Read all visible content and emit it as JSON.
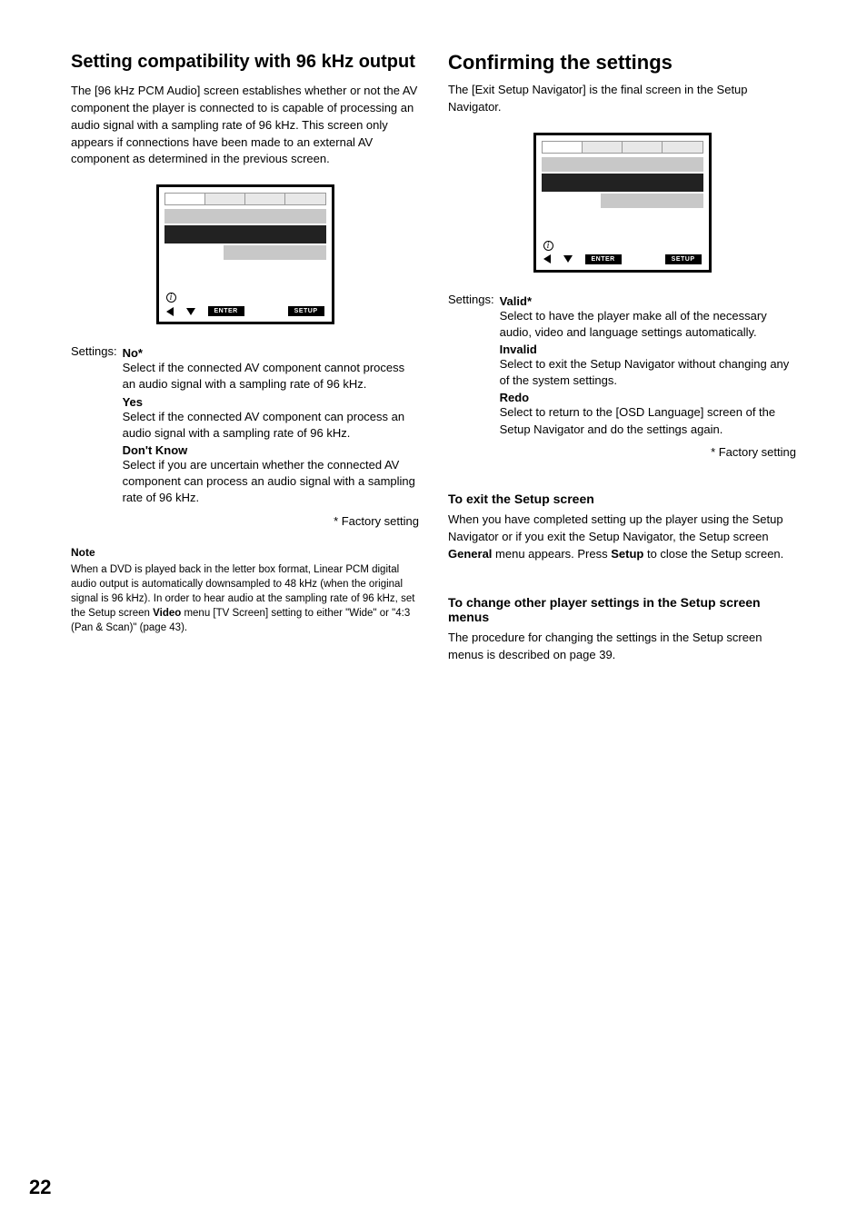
{
  "page_number": "22",
  "left": {
    "heading": "Setting compatibility with 96 kHz output",
    "intro": "The [96 kHz PCM Audio] screen establishes whether or not the AV component the player is connected to is capable of processing an audio signal with a sampling rate of 96 kHz. This screen only appears if connections have been made to an external AV component as determined in the previous screen.",
    "settings_label": "Settings:",
    "options": [
      {
        "title": "No*",
        "desc": "Select if the connected AV component cannot process an audio signal with a sampling rate of 96 kHz."
      },
      {
        "title": "Yes",
        "desc": "Select if the connected AV component can process an audio signal with a sampling rate of 96 kHz."
      },
      {
        "title": "Don't Know",
        "desc": "Select if you are uncertain whether the connected AV component can process an audio signal with a sampling rate of 96 kHz."
      }
    ],
    "factory": "* Factory setting",
    "note_title": "Note",
    "note_body_1": "When a DVD is played back in the letter box format, Linear PCM digital audio output is automatically downsampled to 48 kHz (when the original signal is 96 kHz). In order to hear audio at the sampling rate of 96 kHz, set the Setup screen ",
    "note_bold_1": "Video",
    "note_body_2": " menu [TV Screen] setting to either \"Wide\" or \"4:3 (Pan & Scan)\" (page 43).",
    "screen": {
      "btn_enter": "ENTER",
      "btn_setup": "SETUP",
      "info_glyph": "i"
    }
  },
  "right": {
    "heading": "Confirming the settings",
    "intro": "The [Exit Setup Navigator] is the final screen in the Setup Navigator.",
    "settings_label": "Settings:",
    "options": [
      {
        "title": "Valid*",
        "desc": "Select to have the player make all of the necessary audio, video and language settings automatically."
      },
      {
        "title": "Invalid",
        "desc": "Select to exit the Setup Navigator without changing any of the system settings."
      },
      {
        "title": "Redo",
        "desc": "Select to return to the [OSD Language] screen of the Setup Navigator and do the settings again."
      }
    ],
    "factory": "* Factory setting",
    "sub1_title": "To exit the Setup screen",
    "sub1_body_1": "When you have completed setting up the player using the Setup Navigator or if you exit the Setup Navigator, the Setup screen ",
    "sub1_bold_1": "General",
    "sub1_body_2": " menu appears. Press ",
    "sub1_bold_2": "Setup",
    "sub1_body_3": " to close the Setup screen.",
    "sub2_title": "To change other player settings in the Setup screen menus",
    "sub2_body": "The procedure for changing the settings in the Setup screen menus is described on page 39.",
    "screen": {
      "btn_enter": "ENTER",
      "btn_setup": "SETUP",
      "info_glyph": "i"
    }
  }
}
